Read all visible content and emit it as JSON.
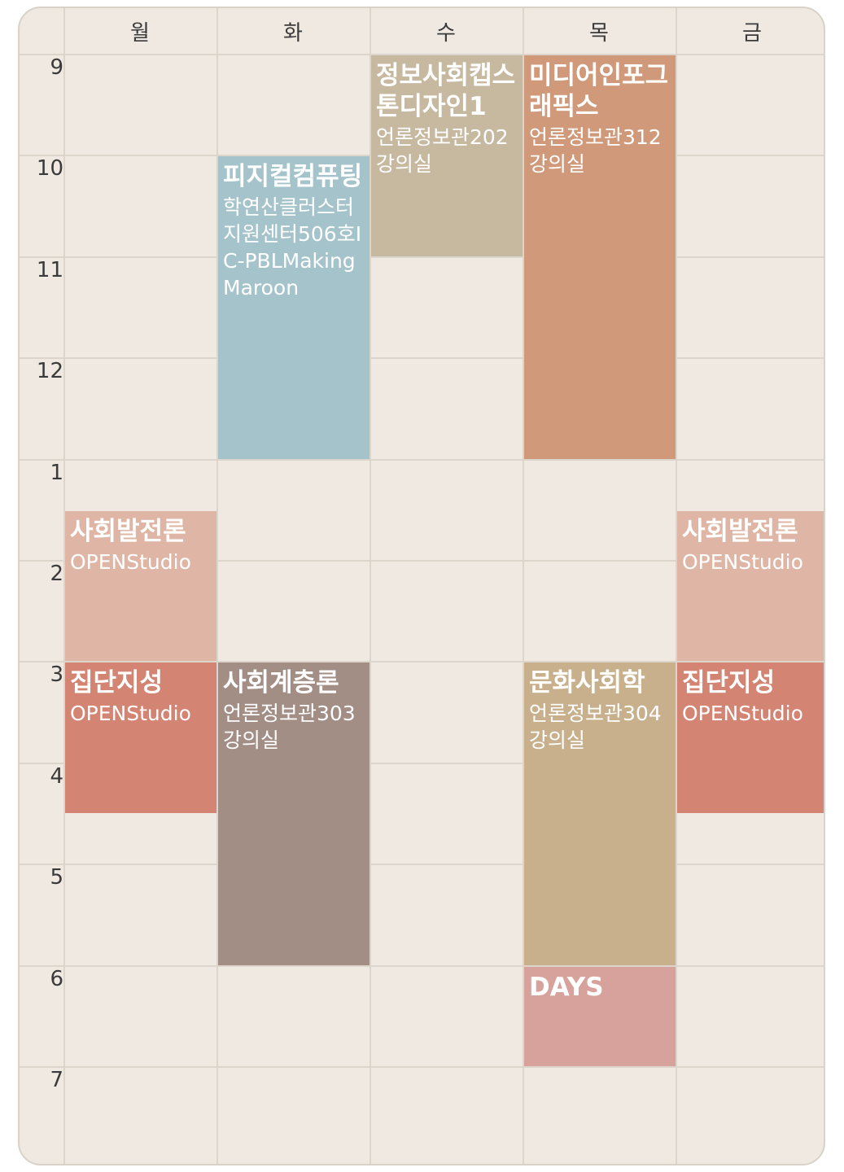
{
  "days": [
    "월",
    "화",
    "수",
    "목",
    "금"
  ],
  "hours": [
    "9",
    "10",
    "11",
    "12",
    "1",
    "2",
    "3",
    "4",
    "5",
    "6",
    "7"
  ],
  "start_hour": 9,
  "end_hour": 20,
  "events": [
    {
      "day": 1,
      "start": 10,
      "end": 13,
      "title": "피지컬컴퓨팅",
      "room": "학연산클러스터지원센터506호IC-PBLMakingMaroon",
      "color": "#a5c3ca"
    },
    {
      "day": 2,
      "start": 9,
      "end": 11,
      "title": "정보사회캡스톤디자인1",
      "room": "언론정보관202강의실",
      "color": "#c7b8a0"
    },
    {
      "day": 3,
      "start": 9,
      "end": 13,
      "title": "미디어인포그래픽스",
      "room": "언론정보관312강의실",
      "color": "#cf997a"
    },
    {
      "day": 0,
      "start": 13.5,
      "end": 15,
      "title": "사회발전론",
      "room": "OPENStudio",
      "color": "#dfb6a5"
    },
    {
      "day": 4,
      "start": 13.5,
      "end": 15,
      "title": "사회발전론",
      "room": "OPENStudio",
      "color": "#dfb6a5"
    },
    {
      "day": 0,
      "start": 15,
      "end": 16.5,
      "title": "집단지성",
      "room": "OPENStudio",
      "color": "#d38473"
    },
    {
      "day": 4,
      "start": 15,
      "end": 16.5,
      "title": "집단지성",
      "room": "OPENStudio",
      "color": "#d38473"
    },
    {
      "day": 1,
      "start": 15,
      "end": 18,
      "title": "사회계층론",
      "room": "언론정보관303강의실",
      "color": "#a38e86"
    },
    {
      "day": 3,
      "start": 15,
      "end": 18,
      "title": "문화사회학",
      "room": "언론정보관304강의실",
      "color": "#c8b08c"
    },
    {
      "day": 3,
      "start": 18,
      "end": 19,
      "title": "DAYS",
      "room": "",
      "color": "#d8a29c"
    }
  ]
}
